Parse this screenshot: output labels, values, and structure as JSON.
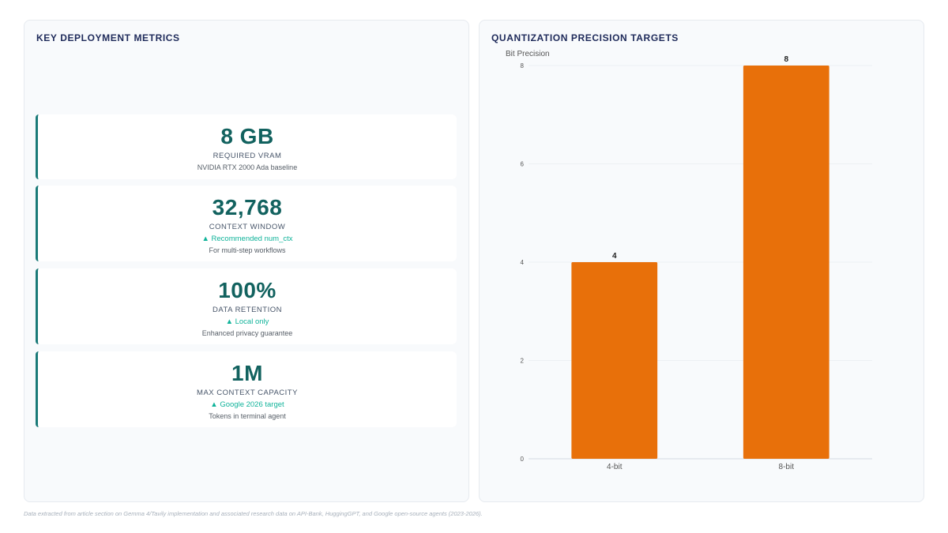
{
  "left_panel": {
    "title": "KEY DEPLOYMENT METRICS",
    "metrics": [
      {
        "value": "8 GB",
        "label": "REQUIRED VRAM",
        "trend": "",
        "note": "NVIDIA RTX 2000 Ada baseline"
      },
      {
        "value": "32,768",
        "label": "CONTEXT WINDOW",
        "trend": "▲ Recommended num_ctx",
        "note": "For multi-step workflows"
      },
      {
        "value": "100%",
        "label": "DATA RETENTION",
        "trend": "▲ Local only",
        "note": "Enhanced privacy guarantee"
      },
      {
        "value": "1M",
        "label": "MAX CONTEXT CAPACITY",
        "trend": "▲ Google 2026 target",
        "note": "Tokens in terminal agent"
      }
    ]
  },
  "right_panel": {
    "title": "QUANTIZATION PRECISION TARGETS"
  },
  "chart_data": {
    "type": "bar",
    "categories": [
      "4-bit",
      "8-bit"
    ],
    "values": [
      4,
      8
    ],
    "ylabel": "Bit Precision",
    "ylim": [
      0,
      8
    ],
    "yticks": [
      0,
      2,
      4,
      6,
      8
    ],
    "bar_color": "#e8700a",
    "grid": true,
    "data_labels": true
  },
  "footer": {
    "note": "Data extracted from article section on Gemma 4/Tavily implementation and associated research data on API-Bank, HuggingGPT, and Google open-source agents (2023-2026)."
  }
}
